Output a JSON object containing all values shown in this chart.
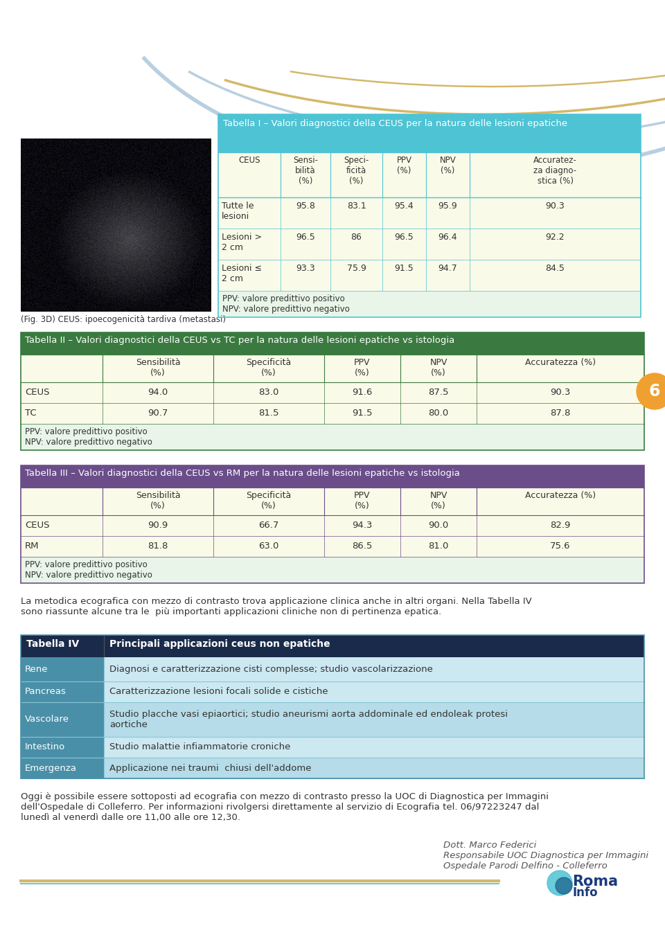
{
  "page_bg": "#ffffff",
  "header_arc_color1": "#b8cfe0",
  "header_arc_color2": "#d4b86a",
  "table1_title": "Tabella I – Valori diagnostici della CEUS per la natura delle lesioni epatiche",
  "table1_header_bg": "#4ec3d4",
  "table1_header_text": "#ffffff",
  "table1_col_headers": [
    "CEUS",
    "Sensi-\nbilità\n(%)",
    "Speci-\nficità\n(%)",
    "PPV\n(%)",
    "NPV\n(%)",
    "Accuratez-\nza diagno-\nstica (%)"
  ],
  "table1_rows": [
    [
      "Tutte le\nlesioni",
      "95.8",
      "83.1",
      "95.4",
      "95.9",
      "90.3"
    ],
    [
      "Lesioni >\n2 cm",
      "96.5",
      "86",
      "96.5",
      "96.4",
      "92.2"
    ],
    [
      "Lesioni ≤\n2 cm",
      "93.3",
      "75.9",
      "91.5",
      "94.7",
      "84.5"
    ]
  ],
  "table1_footnote": "PPV: valore predittivo positivo\nNPV: valore predittivo negativo",
  "table1_row_bg": "#fafae8",
  "table1_footnote_bg": "#e8f5e8",
  "table1_border": "#4ec3d4",
  "table2_title": "Tabella II – Valori diagnostici della CEUS vs TC per la natura delle lesioni epatiche vs istologia",
  "table2_header_bg": "#3a7a40",
  "table2_header_text": "#ffffff",
  "table2_col_headers": [
    "",
    "Sensibilità\n(%)",
    "Specificità\n(%)",
    "PPV\n(%)",
    "NPV\n(%)",
    "Accuratezza (%)"
  ],
  "table2_rows": [
    [
      "CEUS",
      "94.0",
      "83.0",
      "91.6",
      "87.5",
      "90.3"
    ],
    [
      "TC",
      "90.7",
      "81.5",
      "91.5",
      "80.0",
      "87.8"
    ]
  ],
  "table2_footnote": "PPV: valore predittivo positivo\nNPV: valore predittivo negativo",
  "table2_row_bg": "#fafae8",
  "table2_footnote_bg": "#e8f5e8",
  "table2_border": "#3a7a40",
  "table3_title": "Tabella III – Valori diagnostici della CEUS vs RM per la natura delle lesioni epatiche vs istologia",
  "table3_header_bg": "#6b4d8a",
  "table3_header_text": "#ffffff",
  "table3_col_headers": [
    "",
    "Sensibilità\n(%)",
    "Specificità\n(%)",
    "PPV\n(%)",
    "NPV\n(%)",
    "Accuratezza (%)"
  ],
  "table3_rows": [
    [
      "CEUS",
      "90.9",
      "66.7",
      "94.3",
      "90.0",
      "82.9"
    ],
    [
      "RM",
      "81.8",
      "63.0",
      "86.5",
      "81.0",
      "75.6"
    ]
  ],
  "table3_footnote": "PPV: valore predittivo positivo\nNPV: valore predittivo negativo",
  "table3_row_bg": "#fafae8",
  "table3_footnote_bg": "#e8f5e8",
  "table3_border": "#6b4d8a",
  "table4_title_col1": "Tabella IV",
  "table4_title_col2": "Principali applicazioni ceus non epatiche",
  "table4_header_bg": "#1a2a4a",
  "table4_header_text": "#ffffff",
  "table4_col1_bg": "#4a8fa8",
  "table4_col1_text": "#ffffff",
  "table4_rows": [
    [
      "Rene",
      "Diagnosi e caratterizzazione cisti complesse; studio vascolarizzazione"
    ],
    [
      "Pancreas",
      "Caratterizzazione lesioni focali solide e cistiche"
    ],
    [
      "Vascolare",
      "Studio placche vasi epiaortici; studio aneurismi aorta addominale ed endoleak protesi\naortiche"
    ],
    [
      "Intestino",
      "Studio malattie infiammatorie croniche"
    ],
    [
      "Emergenza",
      "Applicazione nei traumi  chiusi dell'addome"
    ]
  ],
  "table4_row_bg_alt": [
    "#cce8f0",
    "#cce8f0",
    "#b5dce8",
    "#cce8f0",
    "#b5dce8"
  ],
  "table4_border": "#4a8fa8",
  "para1": "La metodica ecografica con mezzo di contrasto trova applicazione clinica anche in altri organi. Nella Tabella IV\nsono riassunte alcune tra le  più importanti applicazioni cliniche non di pertinenza epatica.",
  "para2": "Oggi è possibile essere sottoposti ad ecografia con mezzo di contrasto presso la UOC di Diagnostica per Immagini\ndell'Ospedale di Colleferro. Per informazioni rivolgersi direttamente al servizio di Ecografia tel. 06/97223247 dal\nlunedì al venerdì dalle ore 11,00 alle ore 12,30.",
  "signature": "Dott. Marco Federici\nResponsabile UOC Diagnostica per Immagini\nOspedale Parodi Delfino - Colleferro",
  "side_badge_color": "#f0a030",
  "side_badge_text": "6",
  "side_badge_text_color": "#ffffff",
  "img_caption": "(Fig. 3D) CEUS: ipoecogenicità tardiva (metastasi)"
}
